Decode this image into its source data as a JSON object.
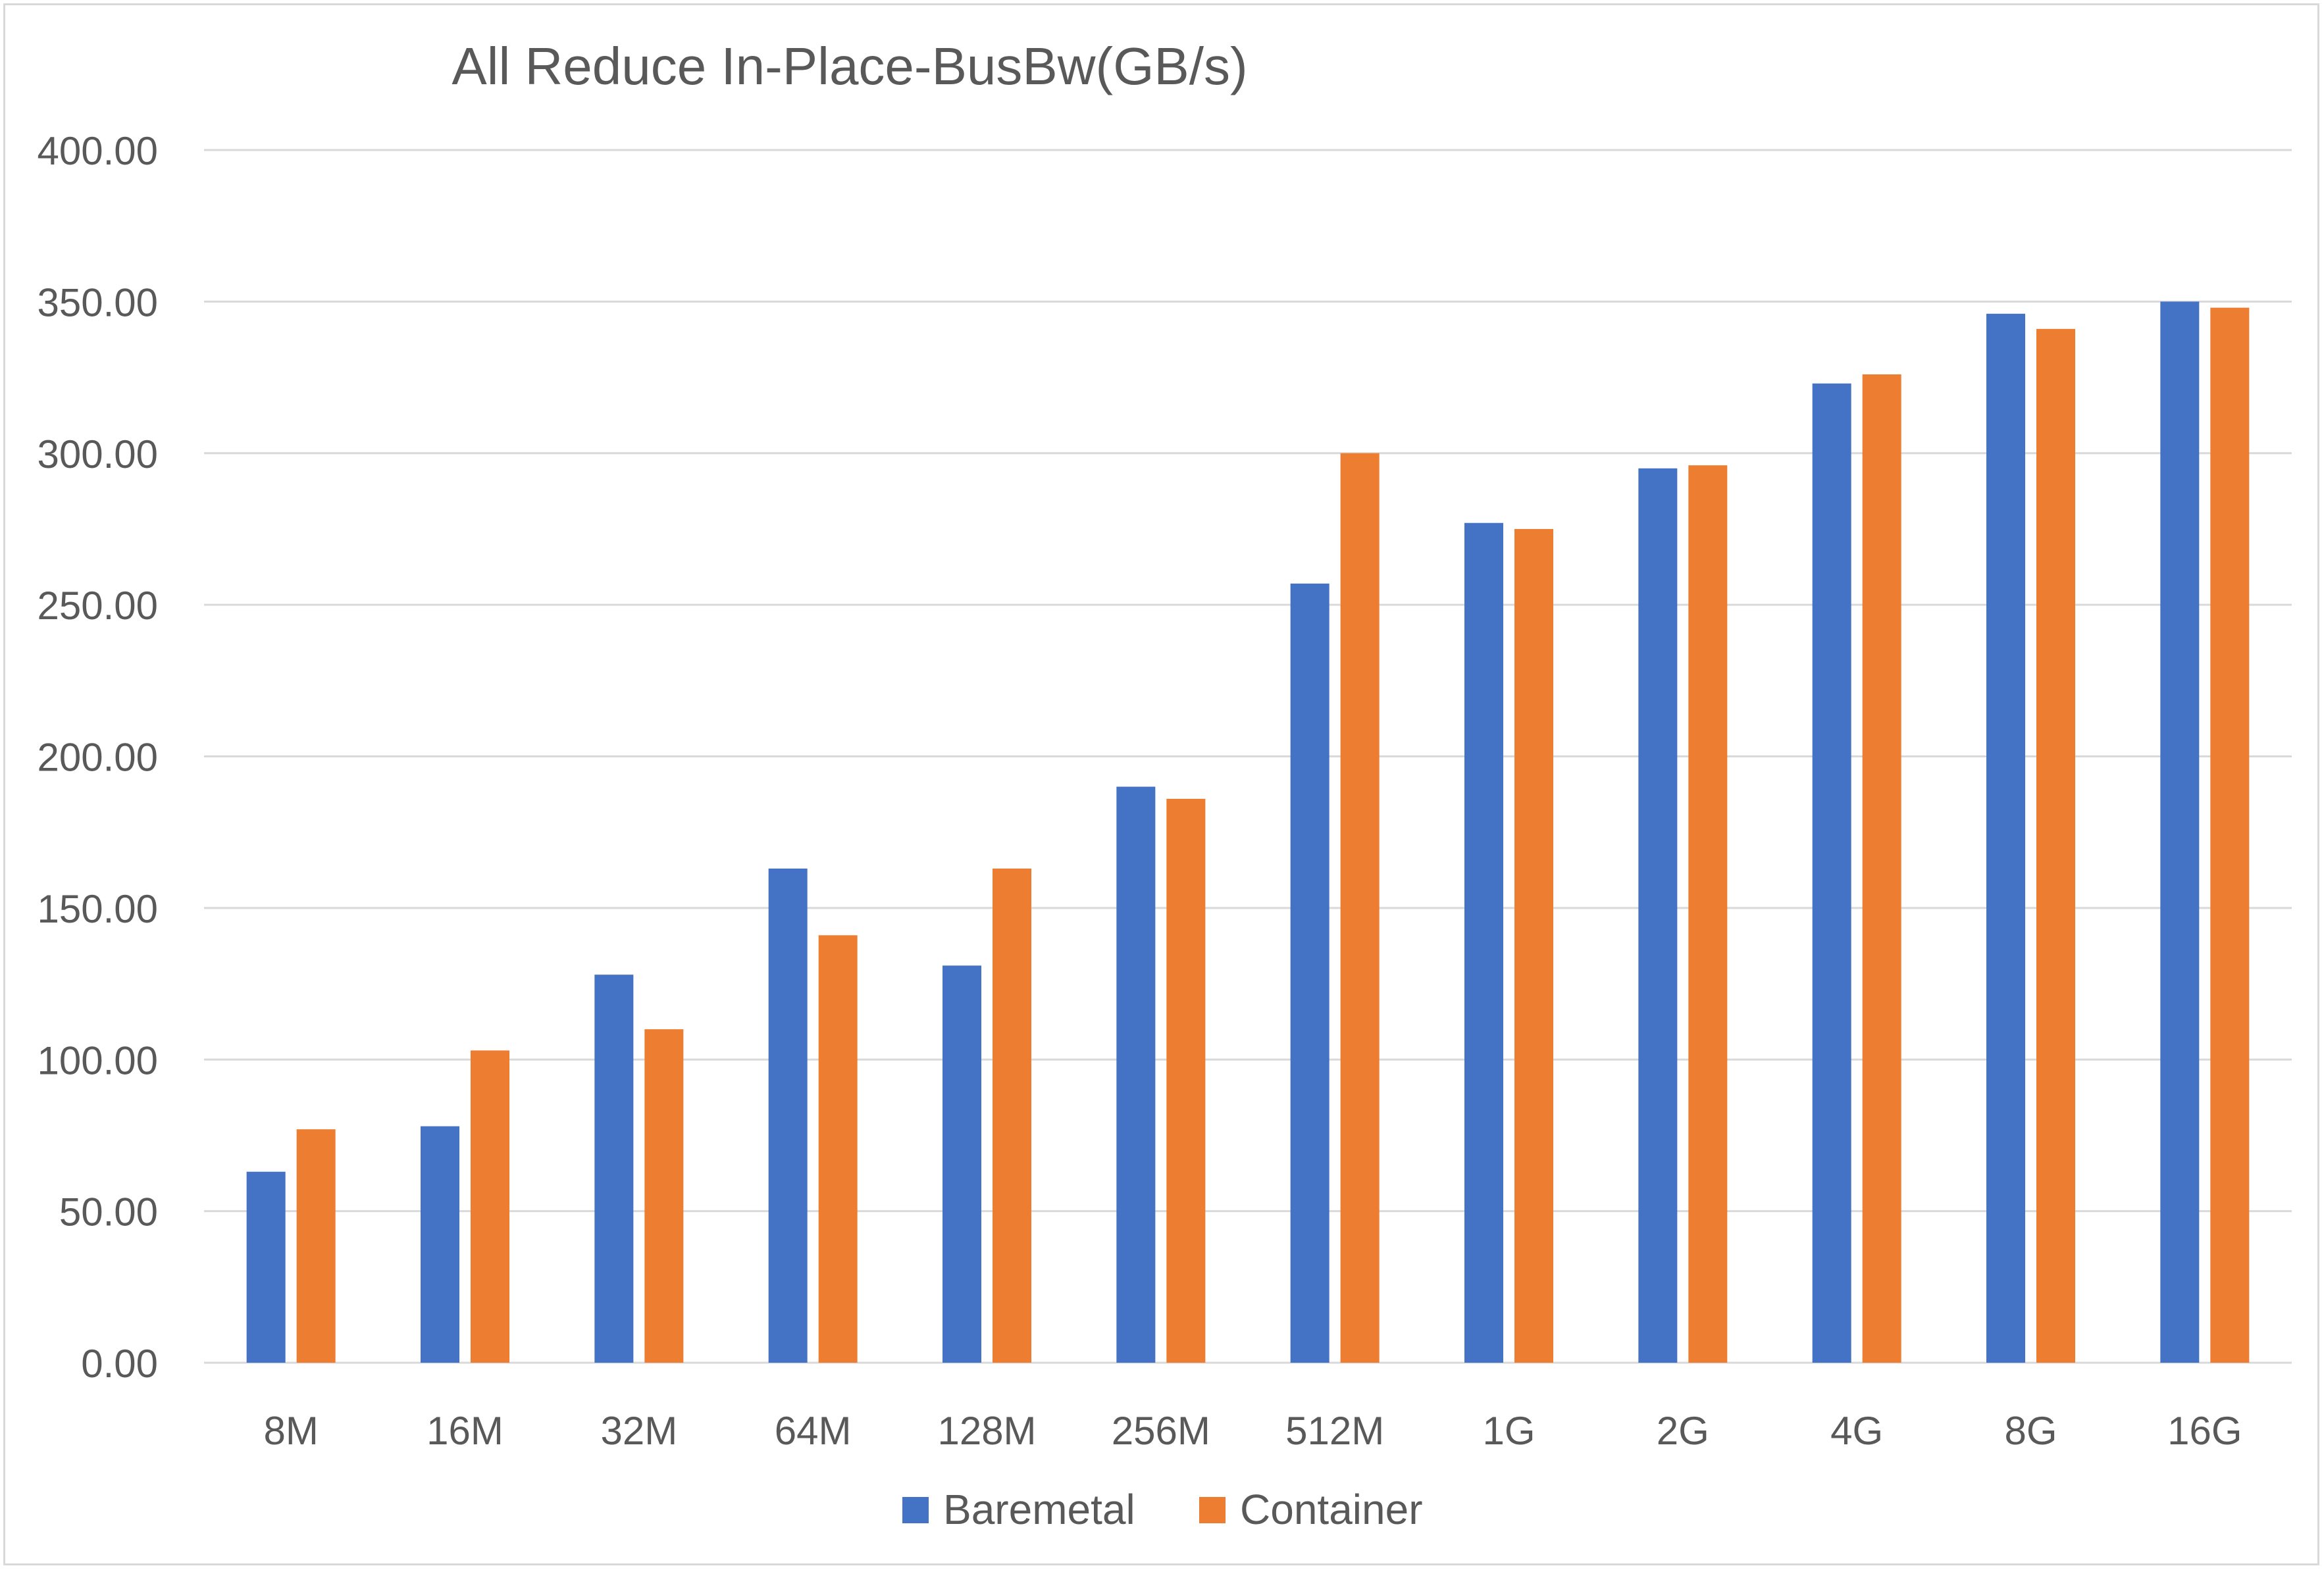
{
  "chart_data": {
    "type": "bar",
    "title": "All Reduce In-Place-BusBw(GB/s)",
    "xlabel": "",
    "ylabel": "",
    "categories": [
      "8M",
      "16M",
      "32M",
      "64M",
      "128M",
      "256M",
      "512M",
      "1G",
      "2G",
      "4G",
      "8G",
      "16G"
    ],
    "series": [
      {
        "name": "Baremetal",
        "color": "#4472C4",
        "values": [
          63,
          78,
          128,
          163,
          131,
          190,
          257,
          277,
          295,
          323,
          346,
          350
        ]
      },
      {
        "name": "Container",
        "color": "#ED7D31",
        "values": [
          77,
          103,
          110,
          141,
          163,
          186,
          300,
          275,
          296,
          326,
          341,
          348
        ]
      }
    ],
    "ylim": [
      0,
      400
    ],
    "yticks": [
      "0.00",
      "50.00",
      "100.00",
      "150.00",
      "200.00",
      "250.00",
      "300.00",
      "350.00",
      "400.00"
    ],
    "grid": true,
    "legend_position": "bottom",
    "gridline_color": "#D9D9D9"
  }
}
